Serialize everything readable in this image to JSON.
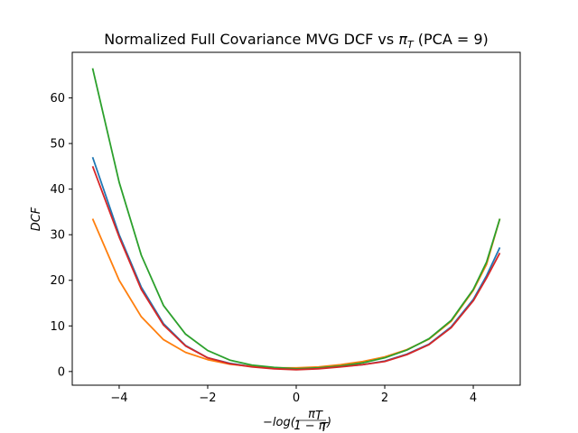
{
  "chart_data": {
    "type": "line",
    "title_prefix": "Normalized Full Covariance MVG DCF vs ",
    "title_symbol": "π",
    "title_symbol_sub": "T",
    "title_suffix": " (PCA = 9)",
    "xlabel": "−log(π_T / (1−π_T))",
    "xlabel_parts": {
      "prefix": "−log(",
      "num": "π",
      "num_sub": "T",
      "den": "1 − π",
      "den_sub": "T",
      "suffix": ")"
    },
    "ylabel": "DCF",
    "xlim": [
      -5.06,
      5.06
    ],
    "ylim": [
      -3.0,
      70.0
    ],
    "xticks": [
      -4,
      -2,
      0,
      2,
      4
    ],
    "xtick_labels": [
      "−4",
      "−2",
      "0",
      "2",
      "4"
    ],
    "yticks": [
      0,
      10,
      20,
      30,
      40,
      50,
      60
    ],
    "ytick_labels": [
      "0",
      "10",
      "20",
      "30",
      "40",
      "50",
      "60"
    ],
    "grid": false,
    "series": [
      {
        "color": "#1f77b4",
        "x": [
          -4.6,
          -4.0,
          -3.5,
          -3.0,
          -2.5,
          -2.0,
          -1.5,
          -1.0,
          -0.5,
          0.0,
          0.5,
          1.0,
          1.5,
          2.0,
          2.5,
          3.0,
          3.5,
          4.0,
          4.3,
          4.6
        ],
        "y": [
          47.0,
          30.0,
          18.5,
          10.5,
          5.7,
          3.0,
          1.8,
          1.1,
          0.7,
          0.6,
          0.8,
          1.1,
          1.5,
          2.3,
          3.8,
          6.0,
          9.8,
          15.8,
          21.0,
          27.2
        ]
      },
      {
        "color": "#ff7f0e",
        "x": [
          -4.6,
          -4.0,
          -3.5,
          -3.0,
          -2.5,
          -2.0,
          -1.5,
          -1.0,
          -0.5,
          0.0,
          0.5,
          1.0,
          1.5,
          2.0,
          2.5,
          3.0,
          3.5,
          4.0,
          4.3,
          4.6
        ],
        "y": [
          33.5,
          20.0,
          12.0,
          7.0,
          4.2,
          2.6,
          1.6,
          1.1,
          0.8,
          0.8,
          1.0,
          1.5,
          2.2,
          3.2,
          4.8,
          7.1,
          11.0,
          17.8,
          23.5,
          33.5
        ]
      },
      {
        "color": "#2ca02c",
        "x": [
          -4.6,
          -4.0,
          -3.5,
          -3.0,
          -2.5,
          -2.0,
          -1.5,
          -1.0,
          -0.5,
          0.0,
          0.5,
          1.0,
          1.5,
          2.0,
          2.5,
          3.0,
          3.5,
          4.0,
          4.3,
          4.6
        ],
        "y": [
          66.5,
          41.5,
          25.5,
          14.5,
          8.2,
          4.6,
          2.5,
          1.4,
          0.9,
          0.6,
          0.8,
          1.2,
          1.9,
          3.0,
          4.7,
          7.2,
          11.2,
          18.0,
          24.0,
          33.5
        ]
      },
      {
        "color": "#d62728",
        "x": [
          -4.6,
          -4.0,
          -3.5,
          -3.0,
          -2.5,
          -2.0,
          -1.5,
          -1.0,
          -0.5,
          0.0,
          0.5,
          1.0,
          1.5,
          2.0,
          2.5,
          3.0,
          3.5,
          4.0,
          4.3,
          4.6
        ],
        "y": [
          45.0,
          29.5,
          18.0,
          10.2,
          5.6,
          3.0,
          1.7,
          1.0,
          0.6,
          0.4,
          0.6,
          1.0,
          1.5,
          2.2,
          3.7,
          5.9,
          9.6,
          15.5,
          20.5,
          26.0
        ]
      }
    ]
  }
}
